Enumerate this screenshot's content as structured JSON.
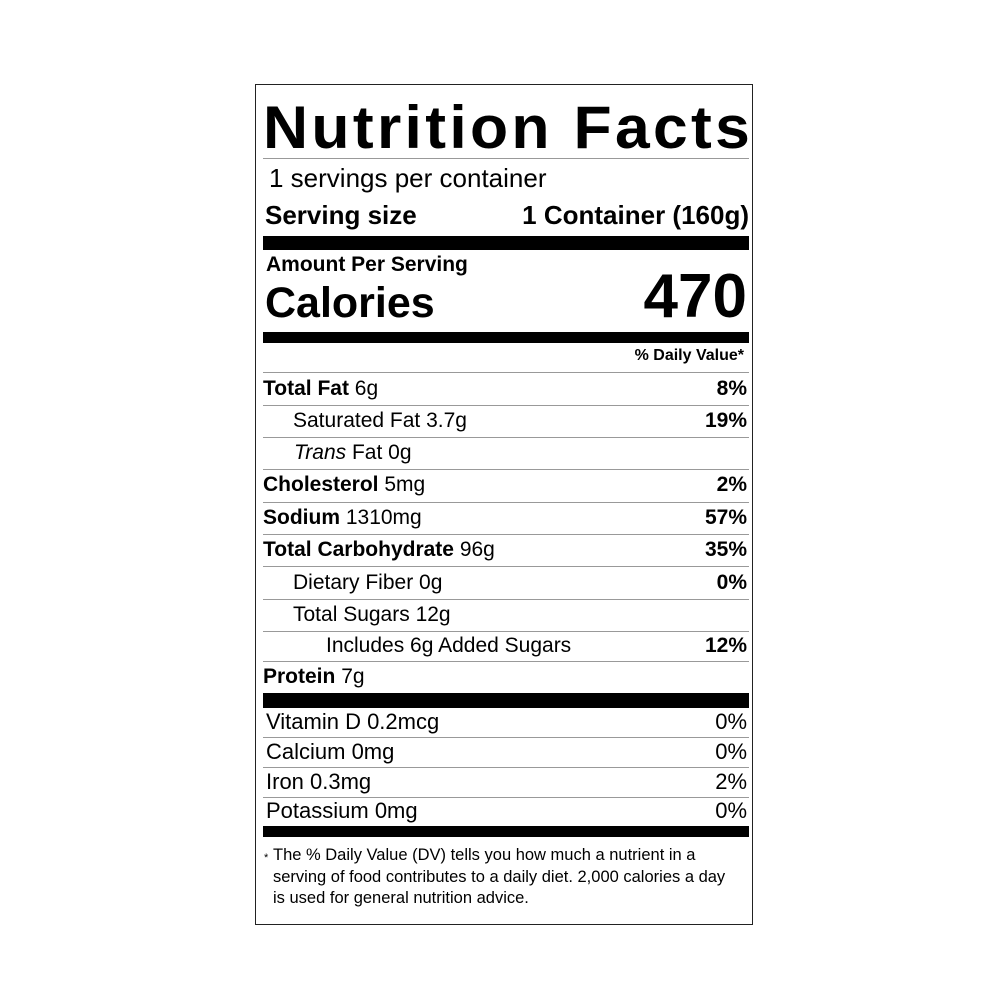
{
  "title": "Nutrition Facts",
  "servings_per_container": "1 servings per container",
  "serving_size": {
    "label": "Serving size",
    "value": "1 Container (160g)"
  },
  "amount_per_serving": "Amount Per Serving",
  "calories": {
    "label": "Calories",
    "value": "470"
  },
  "daily_value_header": "% Daily Value*",
  "nutrients": [
    {
      "name": "Total Fat",
      "amount": "6g",
      "dv": "8%"
    },
    {
      "name": "Saturated Fat",
      "amount": "3.7g",
      "dv": "19%"
    },
    {
      "name": "Trans",
      "name_suffix": "Fat",
      "amount": "0g",
      "dv": ""
    },
    {
      "name": "Cholesterol",
      "amount": "5mg",
      "dv": "2%"
    },
    {
      "name": "Sodium",
      "amount": "1310mg",
      "dv": "57%"
    },
    {
      "name": "Total Carbohydrate",
      "amount": "96g",
      "dv": "35%"
    },
    {
      "name": "Dietary Fiber",
      "amount": "0g",
      "dv": "0%"
    },
    {
      "name": "Total Sugars",
      "amount": "12g",
      "dv": ""
    },
    {
      "name": "Includes 6g Added Sugars",
      "amount": "",
      "dv": "12%"
    },
    {
      "name": "Protein",
      "amount": "7g",
      "dv": ""
    }
  ],
  "vitamins": [
    {
      "name": "Vitamin D 0.2mcg",
      "dv": "0%"
    },
    {
      "name": "Calcium 0mg",
      "dv": "0%"
    },
    {
      "name": "Iron 0.3mg",
      "dv": "2%"
    },
    {
      "name": "Potassium 0mg",
      "dv": "0%"
    }
  ],
  "footnote": {
    "marker": "*",
    "text": "The % Daily Value (DV) tells you how much a nutrient in a serving of food contributes to a daily diet. 2,000 calories a day is used for general nutrition advice."
  }
}
